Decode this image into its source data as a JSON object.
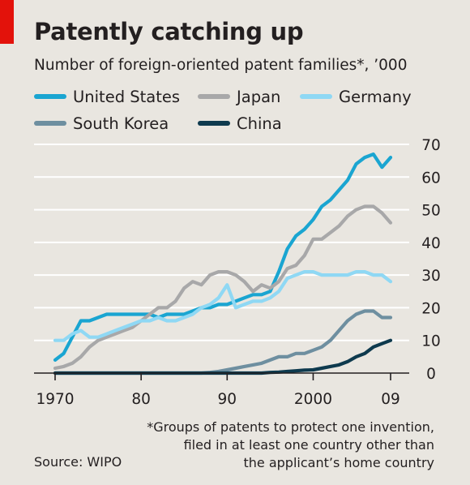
{
  "chart_data": {
    "type": "line",
    "title": "Patently catching up",
    "subtitle": "Number of foreign-oriented patent families*, ’000",
    "xlim": [
      1970,
      2009
    ],
    "ylim": [
      0,
      70
    ],
    "x_ticks": [
      1970,
      1980,
      1990,
      2000,
      2009
    ],
    "x_tick_labels": [
      "1970",
      "80",
      "90",
      "2000",
      "09"
    ],
    "y_ticks": [
      0,
      10,
      20,
      30,
      40,
      50,
      60,
      70
    ],
    "y_tick_labels": [
      "0",
      "10",
      "20",
      "30",
      "40",
      "50",
      "60",
      "70"
    ],
    "grid": "horizontal",
    "y_axis_side": "right",
    "legend_position": "top",
    "x": [
      1970,
      1971,
      1972,
      1973,
      1974,
      1975,
      1976,
      1977,
      1978,
      1979,
      1980,
      1981,
      1982,
      1983,
      1984,
      1985,
      1986,
      1987,
      1988,
      1989,
      1990,
      1991,
      1992,
      1993,
      1994,
      1995,
      1996,
      1997,
      1998,
      1999,
      2000,
      2001,
      2002,
      2003,
      2004,
      2005,
      2006,
      2007,
      2008,
      2009
    ],
    "series": [
      {
        "name": "United States",
        "color": "#1aa5d1",
        "values": [
          4,
          6,
          11,
          16,
          16,
          17,
          18,
          18,
          18,
          18,
          18,
          18,
          17,
          18,
          18,
          18,
          19,
          20,
          20,
          21,
          21,
          22,
          23,
          24,
          24,
          25,
          31,
          38,
          42,
          44,
          47,
          51,
          53,
          56,
          59,
          64,
          66,
          67,
          63,
          66
        ]
      },
      {
        "name": "Japan",
        "color": "#a8a8a9",
        "values": [
          1.5,
          2,
          3,
          5,
          8,
          10,
          11,
          12,
          13,
          14,
          16,
          18,
          20,
          20,
          22,
          26,
          28,
          27,
          30,
          31,
          31,
          30,
          28,
          25,
          27,
          26,
          28,
          32,
          33,
          36,
          41,
          41,
          43,
          45,
          48,
          50,
          51,
          51,
          49,
          46
        ]
      },
      {
        "name": "Germany",
        "color": "#8fd8f4",
        "values": [
          10,
          10,
          12,
          13,
          11,
          11,
          12,
          13,
          14,
          15,
          16,
          16,
          17,
          16,
          16,
          17,
          18,
          20,
          21,
          23,
          27,
          20,
          21,
          22,
          22,
          23,
          25,
          29,
          30,
          31,
          31,
          30,
          30,
          30,
          30,
          31,
          31,
          30,
          30,
          28
        ]
      },
      {
        "name": "South Korea",
        "color": "#6e8fa0",
        "values": [
          0,
          0,
          0,
          0,
          0,
          0,
          0,
          0,
          0,
          0,
          0,
          0,
          0,
          0,
          0,
          0,
          0,
          0,
          0.2,
          0.5,
          1,
          1.5,
          2,
          2.5,
          3,
          4,
          5,
          5,
          6,
          6,
          7,
          8,
          10,
          13,
          16,
          18,
          19,
          19,
          17,
          17
        ]
      },
      {
        "name": "China",
        "color": "#0e3a4e",
        "values": [
          0,
          0,
          0,
          0,
          0,
          0,
          0,
          0,
          0,
          0,
          0,
          0,
          0,
          0,
          0,
          0,
          0,
          0,
          0,
          0,
          0,
          0,
          0,
          0,
          0,
          0.2,
          0.3,
          0.5,
          0.7,
          0.9,
          1,
          1.5,
          2,
          2.5,
          3.5,
          5,
          6,
          8,
          9,
          10
        ]
      }
    ]
  },
  "footnote": {
    "lines": [
      "*Groups of patents to protect one invention,",
      "filed in at least one country other than",
      "the applicant’s home country"
    ]
  },
  "source": "Source: WIPO"
}
